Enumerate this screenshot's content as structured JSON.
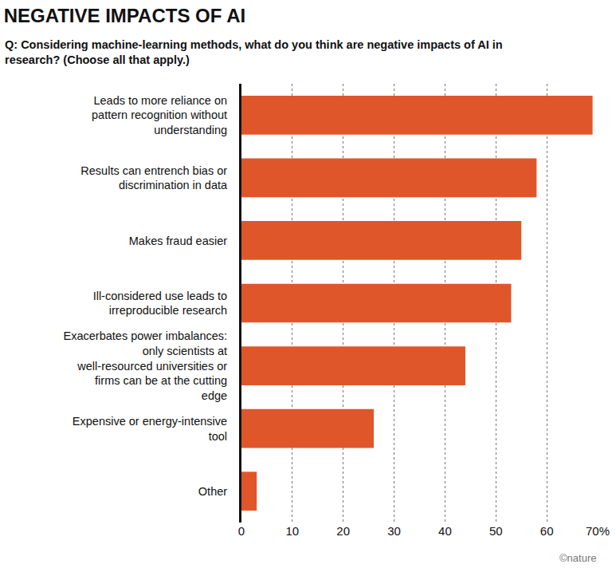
{
  "chart_data": {
    "type": "bar",
    "title": "NEGATIVE IMPACTS OF AI",
    "subtitle": "Q: Considering machine-learning methods, what do you think are negative impacts of AI in research? (Choose all that apply.)",
    "orientation": "horizontal",
    "categories": [
      "Leads to more reliance on pattern recognition without understanding",
      "Results can entrench bias or discrimination in data",
      "Makes fraud easier",
      "Ill-considered use leads to irreproducible research",
      "Exacerbates power imbalances: only scientists at well-resourced universities or firms can be at the cutting edge",
      "Expensive or energy-intensive tool",
      "Other"
    ],
    "values": [
      69,
      58,
      55,
      53,
      44,
      26,
      3
    ],
    "color": "#e0562b",
    "xlim": [
      0,
      70
    ],
    "xticks": [
      0,
      10,
      20,
      30,
      40,
      50,
      60,
      {
        "value": 70,
        "label": "70%"
      }
    ],
    "grid": true,
    "annotations": [
      "©nature"
    ]
  }
}
